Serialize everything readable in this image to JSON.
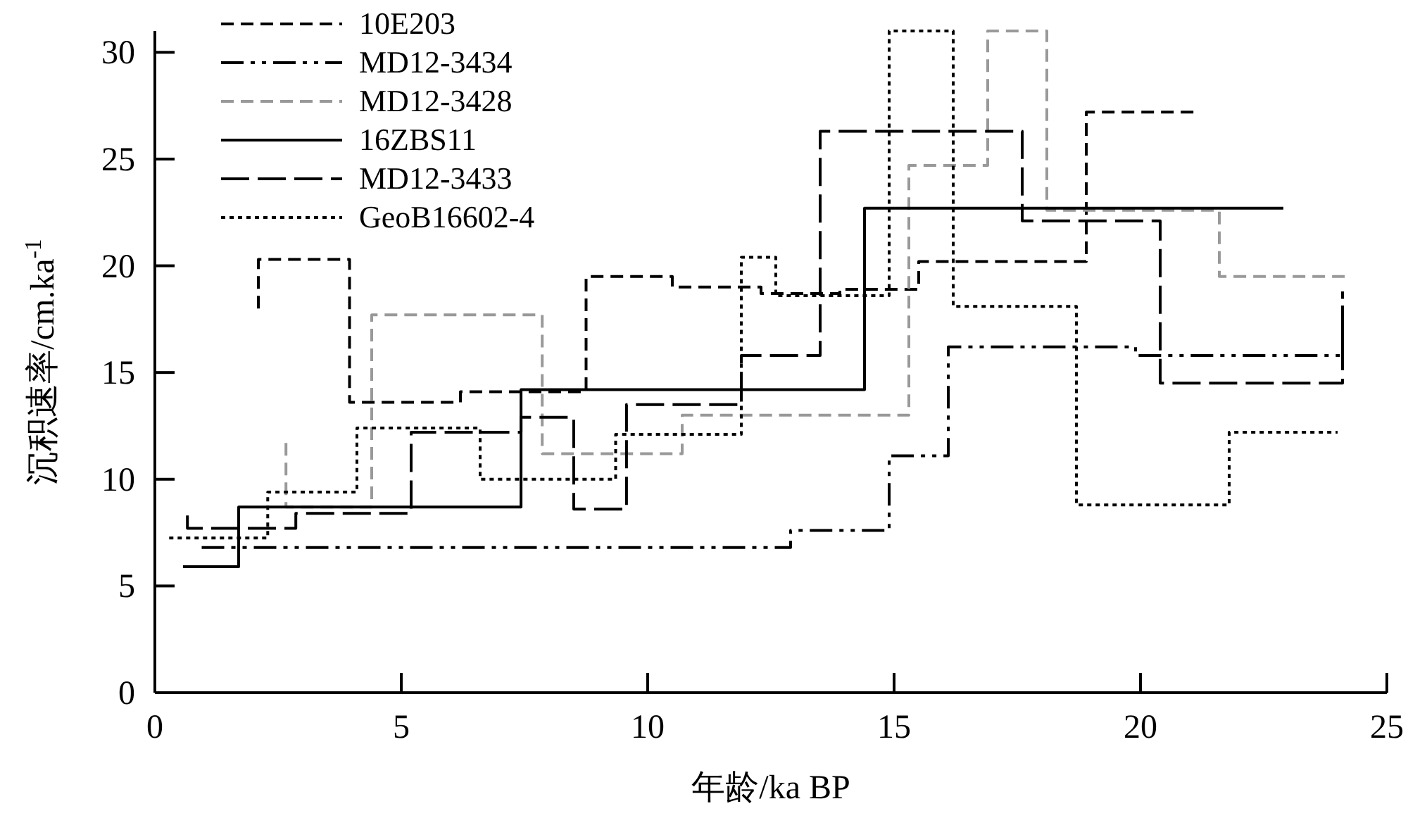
{
  "chart_data": {
    "type": "step",
    "xlabel": "年龄/ka BP",
    "ylabel": "沉积速率/cm.ka$^{-1}$",
    "xlim": [
      0,
      25
    ],
    "xticks": [
      0,
      5,
      10,
      15,
      20,
      25
    ],
    "ylim": [
      0,
      31
    ],
    "yticks": [
      0,
      5,
      10,
      15,
      20,
      25,
      30
    ],
    "grid": false,
    "legend": "top left",
    "series": [
      {
        "name": "10E203",
        "color": "#000000",
        "line_style": "dashed",
        "x": [
          2.1,
          2.1,
          3.95,
          6.2,
          8.75,
          10.5,
          12.3,
          13.9,
          15.5,
          18.9,
          21.1
        ],
        "values": [
          18,
          20.3,
          13.6,
          14.1,
          19.5,
          19.0,
          18.7,
          18.9,
          20.2,
          27.2,
          27.2
        ]
      },
      {
        "name": "MD12-3434",
        "color": "#000000",
        "line_style": "dashed",
        "x": [
          0.95,
          12.9,
          14.9,
          16.1,
          19.9,
          24.1
        ],
        "values": [
          6.8,
          7.6,
          11.1,
          16.2,
          15.8,
          18.8
        ]
      },
      {
        "name": "MD12-3428",
        "color": "#999999",
        "line_style": "dashed",
        "x": [
          2.66,
          2.66,
          4.4,
          7.86,
          10.7,
          15.3,
          16.9,
          18.1,
          21.6,
          24.2
        ],
        "values": [
          11.7,
          8.7,
          17.7,
          11.2,
          13.0,
          24.7,
          31,
          22.6,
          19.5,
          19.5
        ]
      },
      {
        "name": "16ZBS11",
        "color": "#000000",
        "line_style": "solid",
        "x": [
          0.57,
          1.7,
          7.43,
          14.4,
          22.9
        ],
        "values": [
          5.9,
          8.7,
          14.2,
          22.7,
          22.7
        ]
      },
      {
        "name": "MD12-3433",
        "color": "#000000",
        "line_style": "dashed",
        "x": [
          0.66,
          0.66,
          2.86,
          5.2,
          7.43,
          8.5,
          9.57,
          11.9,
          13.5,
          17.6,
          20.4,
          24.1
        ],
        "values": [
          8.3,
          7.7,
          8.4,
          12.2,
          12.9,
          8.6,
          13.5,
          15.8,
          26.3,
          22.1,
          14.5,
          18.8
        ]
      },
      {
        "name": "GeoB16602-4",
        "color": "#000000",
        "line_style": "dotted",
        "x": [
          0.29,
          2.29,
          4.1,
          6.6,
          9.35,
          11.9,
          12.6,
          14.9,
          16.2,
          18.7,
          21.8,
          24.0
        ],
        "values": [
          7.25,
          9.4,
          12.4,
          10.0,
          12.1,
          20.4,
          18.6,
          31,
          18.1,
          8.8,
          12.2,
          12.2
        ]
      }
    ]
  }
}
